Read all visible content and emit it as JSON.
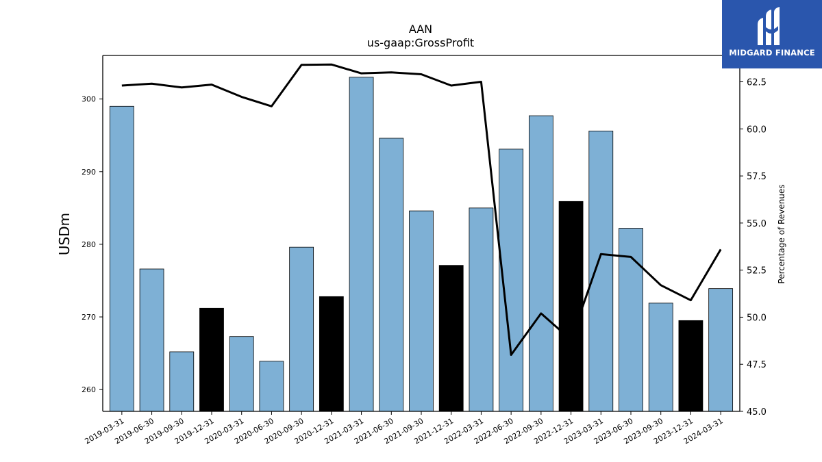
{
  "logo": {
    "text": "MIDGARD FINANCE",
    "icon": "midgard-logo-icon",
    "background": "#2a56ad"
  },
  "chart_data": {
    "type": "bar",
    "title": "AAN",
    "subtitle": "us-gaap:GrossProfit",
    "ylabel": "USDm",
    "y2label": "Percentage of Revenues",
    "ylim": [
      257,
      306
    ],
    "y2lim": [
      45.0,
      63.9
    ],
    "yticks": [
      "260",
      "270",
      "280",
      "290",
      "300"
    ],
    "y2ticks": [
      "45.0",
      "47.5",
      "50.0",
      "52.5",
      "55.0",
      "57.5",
      "60.0",
      "62.5"
    ],
    "categories": [
      "2019-03-31",
      "2019-06-30",
      "2019-09-30",
      "2019-12-31",
      "2020-03-31",
      "2020-06-30",
      "2020-09-30",
      "2020-12-31",
      "2021-03-31",
      "2021-06-30",
      "2021-09-30",
      "2021-12-31",
      "2022-03-31",
      "2022-06-30",
      "2022-09-30",
      "2022-12-31",
      "2023-03-31",
      "2023-06-30",
      "2023-09-30",
      "2023-12-31",
      "2024-03-31"
    ],
    "series": [
      {
        "type": "bar",
        "values": [
          299.0,
          276.6,
          265.2,
          271.2,
          267.3,
          263.9,
          279.6,
          272.8,
          303.0,
          294.6,
          284.6,
          277.1,
          285.0,
          293.1,
          297.7,
          285.9,
          295.6,
          282.2,
          271.9,
          269.5,
          273.9
        ],
        "colors": [
          "#7eb0d5",
          "#7eb0d5",
          "#7eb0d5",
          "#000000",
          "#7eb0d5",
          "#7eb0d5",
          "#7eb0d5",
          "#000000",
          "#7eb0d5",
          "#7eb0d5",
          "#7eb0d5",
          "#000000",
          "#7eb0d5",
          "#7eb0d5",
          "#7eb0d5",
          "#000000",
          "#7eb0d5",
          "#7eb0d5",
          "#7eb0d5",
          "#000000",
          "#7eb0d5"
        ]
      },
      {
        "type": "line",
        "axis": "right",
        "color": "#000000",
        "values": [
          62.3,
          62.4,
          62.2,
          62.35,
          61.7,
          61.2,
          63.4,
          63.42,
          62.95,
          63.0,
          62.9,
          62.3,
          62.5,
          48.0,
          50.2,
          48.8,
          53.35,
          53.2,
          51.7,
          50.9,
          53.6
        ]
      }
    ],
    "grid": false,
    "legend": "none"
  }
}
